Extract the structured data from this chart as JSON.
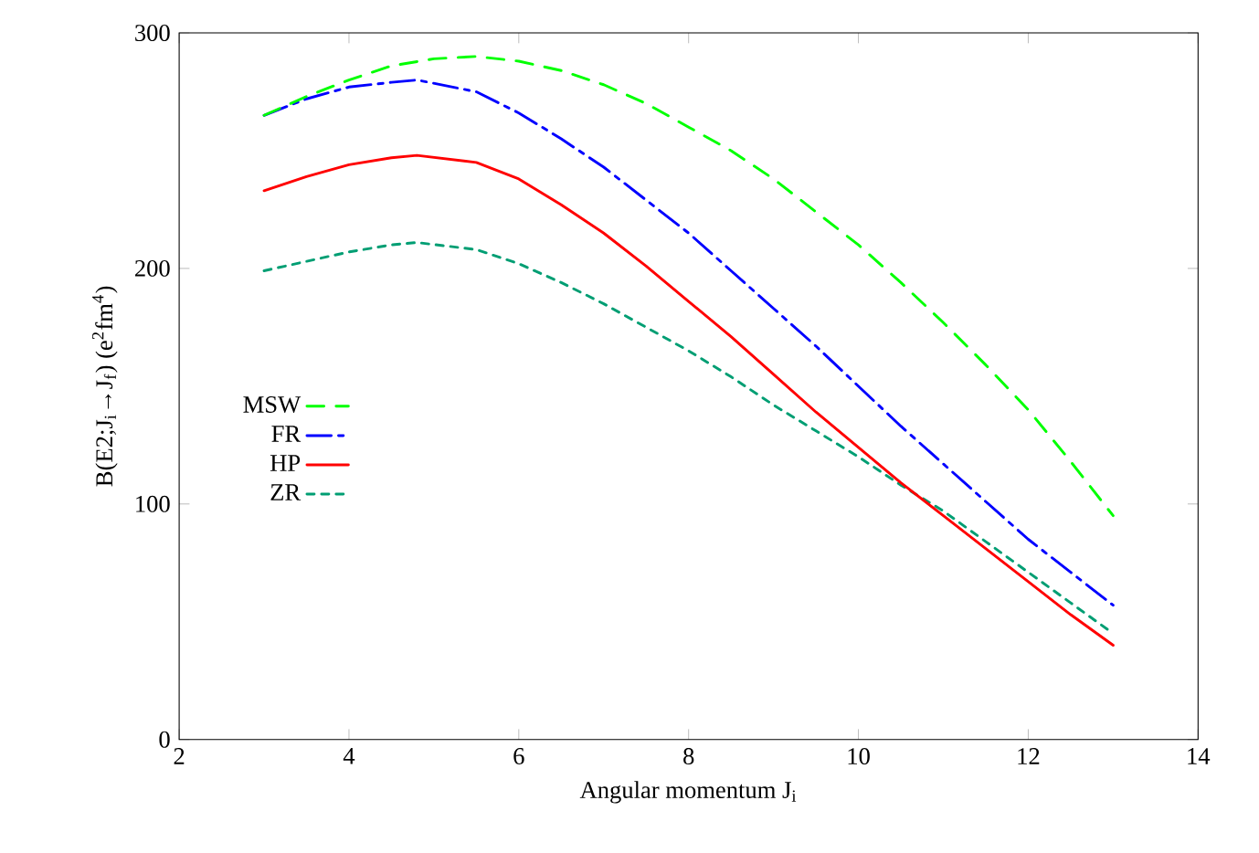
{
  "chart_data": {
    "type": "line",
    "xlabel": "Angular momentum J$_{i}$",
    "ylabel": "B(E2;J$_{i}$→J$_{f}$) (e$^{2}$fm$^{4}$)",
    "xlim": [
      2,
      14
    ],
    "ylim": [
      0,
      300
    ],
    "xticks": [
      2,
      4,
      6,
      8,
      10,
      12,
      14
    ],
    "yticks": [
      0,
      100,
      200,
      300
    ],
    "legend": "left",
    "marker": "none",
    "series": [
      {
        "name": "MSW",
        "color": "#00ff00",
        "line_style": "dashed",
        "x": [
          3,
          3.5,
          4,
          4.5,
          5,
          5.5,
          6,
          6.5,
          7,
          7.5,
          8,
          8.5,
          9,
          9.5,
          10,
          10.5,
          11,
          11.5,
          12,
          12.5,
          13
        ],
        "values": [
          265,
          273,
          280,
          286,
          289,
          290,
          288,
          284,
          278,
          270,
          260,
          250,
          238,
          224,
          210,
          194,
          177,
          159,
          140,
          118,
          95
        ]
      },
      {
        "name": "FR",
        "color": "#0000ff",
        "line_style": "dashdot",
        "x": [
          3,
          3.5,
          4,
          4.5,
          4.8,
          5.5,
          6,
          6.5,
          7,
          7.5,
          8,
          8.5,
          9,
          9.5,
          10,
          10.5,
          11,
          11.5,
          12,
          12.5,
          13
        ],
        "values": [
          265,
          272,
          277,
          279,
          280,
          275,
          266,
          255,
          243,
          229,
          215,
          199,
          183,
          167,
          150,
          133,
          117,
          101,
          85,
          71,
          57
        ]
      },
      {
        "name": "HP",
        "color": "#ff0000",
        "line_style": "solid",
        "x": [
          3,
          3.5,
          4,
          4.5,
          4.8,
          5.5,
          6,
          6.5,
          7,
          7.5,
          8,
          8.5,
          9,
          9.5,
          10,
          10.5,
          11,
          11.5,
          12,
          12.5,
          13
        ],
        "values": [
          233,
          239,
          244,
          247,
          248,
          245,
          238,
          227,
          215,
          201,
          186,
          171,
          155,
          139,
          124,
          109,
          95,
          81,
          67,
          53,
          40
        ]
      },
      {
        "name": "ZR",
        "color": "#009e73",
        "line_style": "dotted",
        "x": [
          3,
          3.5,
          4,
          4.5,
          4.8,
          5.5,
          6,
          6.5,
          7,
          7.5,
          8,
          8.5,
          9,
          9.5,
          10,
          10.5,
          11,
          11.5,
          12,
          12.5,
          13
        ],
        "values": [
          199,
          203,
          207,
          210,
          211,
          208,
          202,
          194,
          185,
          175,
          165,
          154,
          142,
          131,
          120,
          108,
          97,
          84,
          71,
          58,
          45
        ]
      }
    ]
  }
}
